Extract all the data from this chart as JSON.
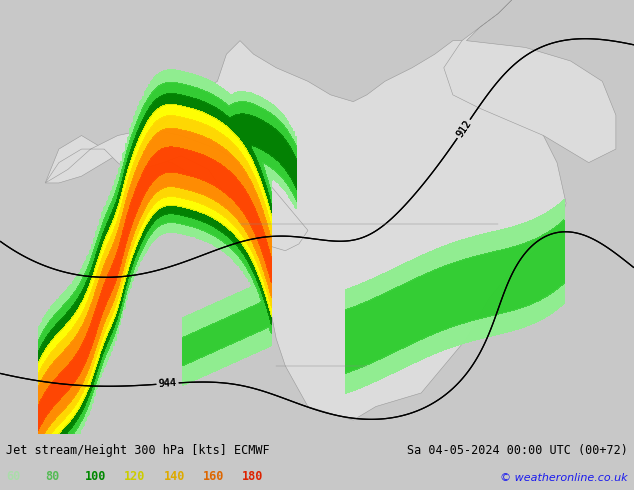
{
  "title_left": "Jet stream/Height 300 hPa [kts] ECMWF",
  "title_right": "Sa 04-05-2024 00:00 UTC (00+72)",
  "copyright": "© weatheronline.co.uk",
  "legend_values": [
    60,
    80,
    100,
    120,
    140,
    160,
    180
  ],
  "legend_colors": [
    "#90ee90",
    "#32cd32",
    "#008000",
    "#ffff00",
    "#ffd700",
    "#ff8c00",
    "#ff4500"
  ],
  "bg_color": "#c8c8c8",
  "land_color": "#dcdcdc",
  "ocean_color": "#b8cfe0",
  "contour_color": "#000000",
  "title_fontsize": 8.5,
  "legend_fontsize": 8.5
}
